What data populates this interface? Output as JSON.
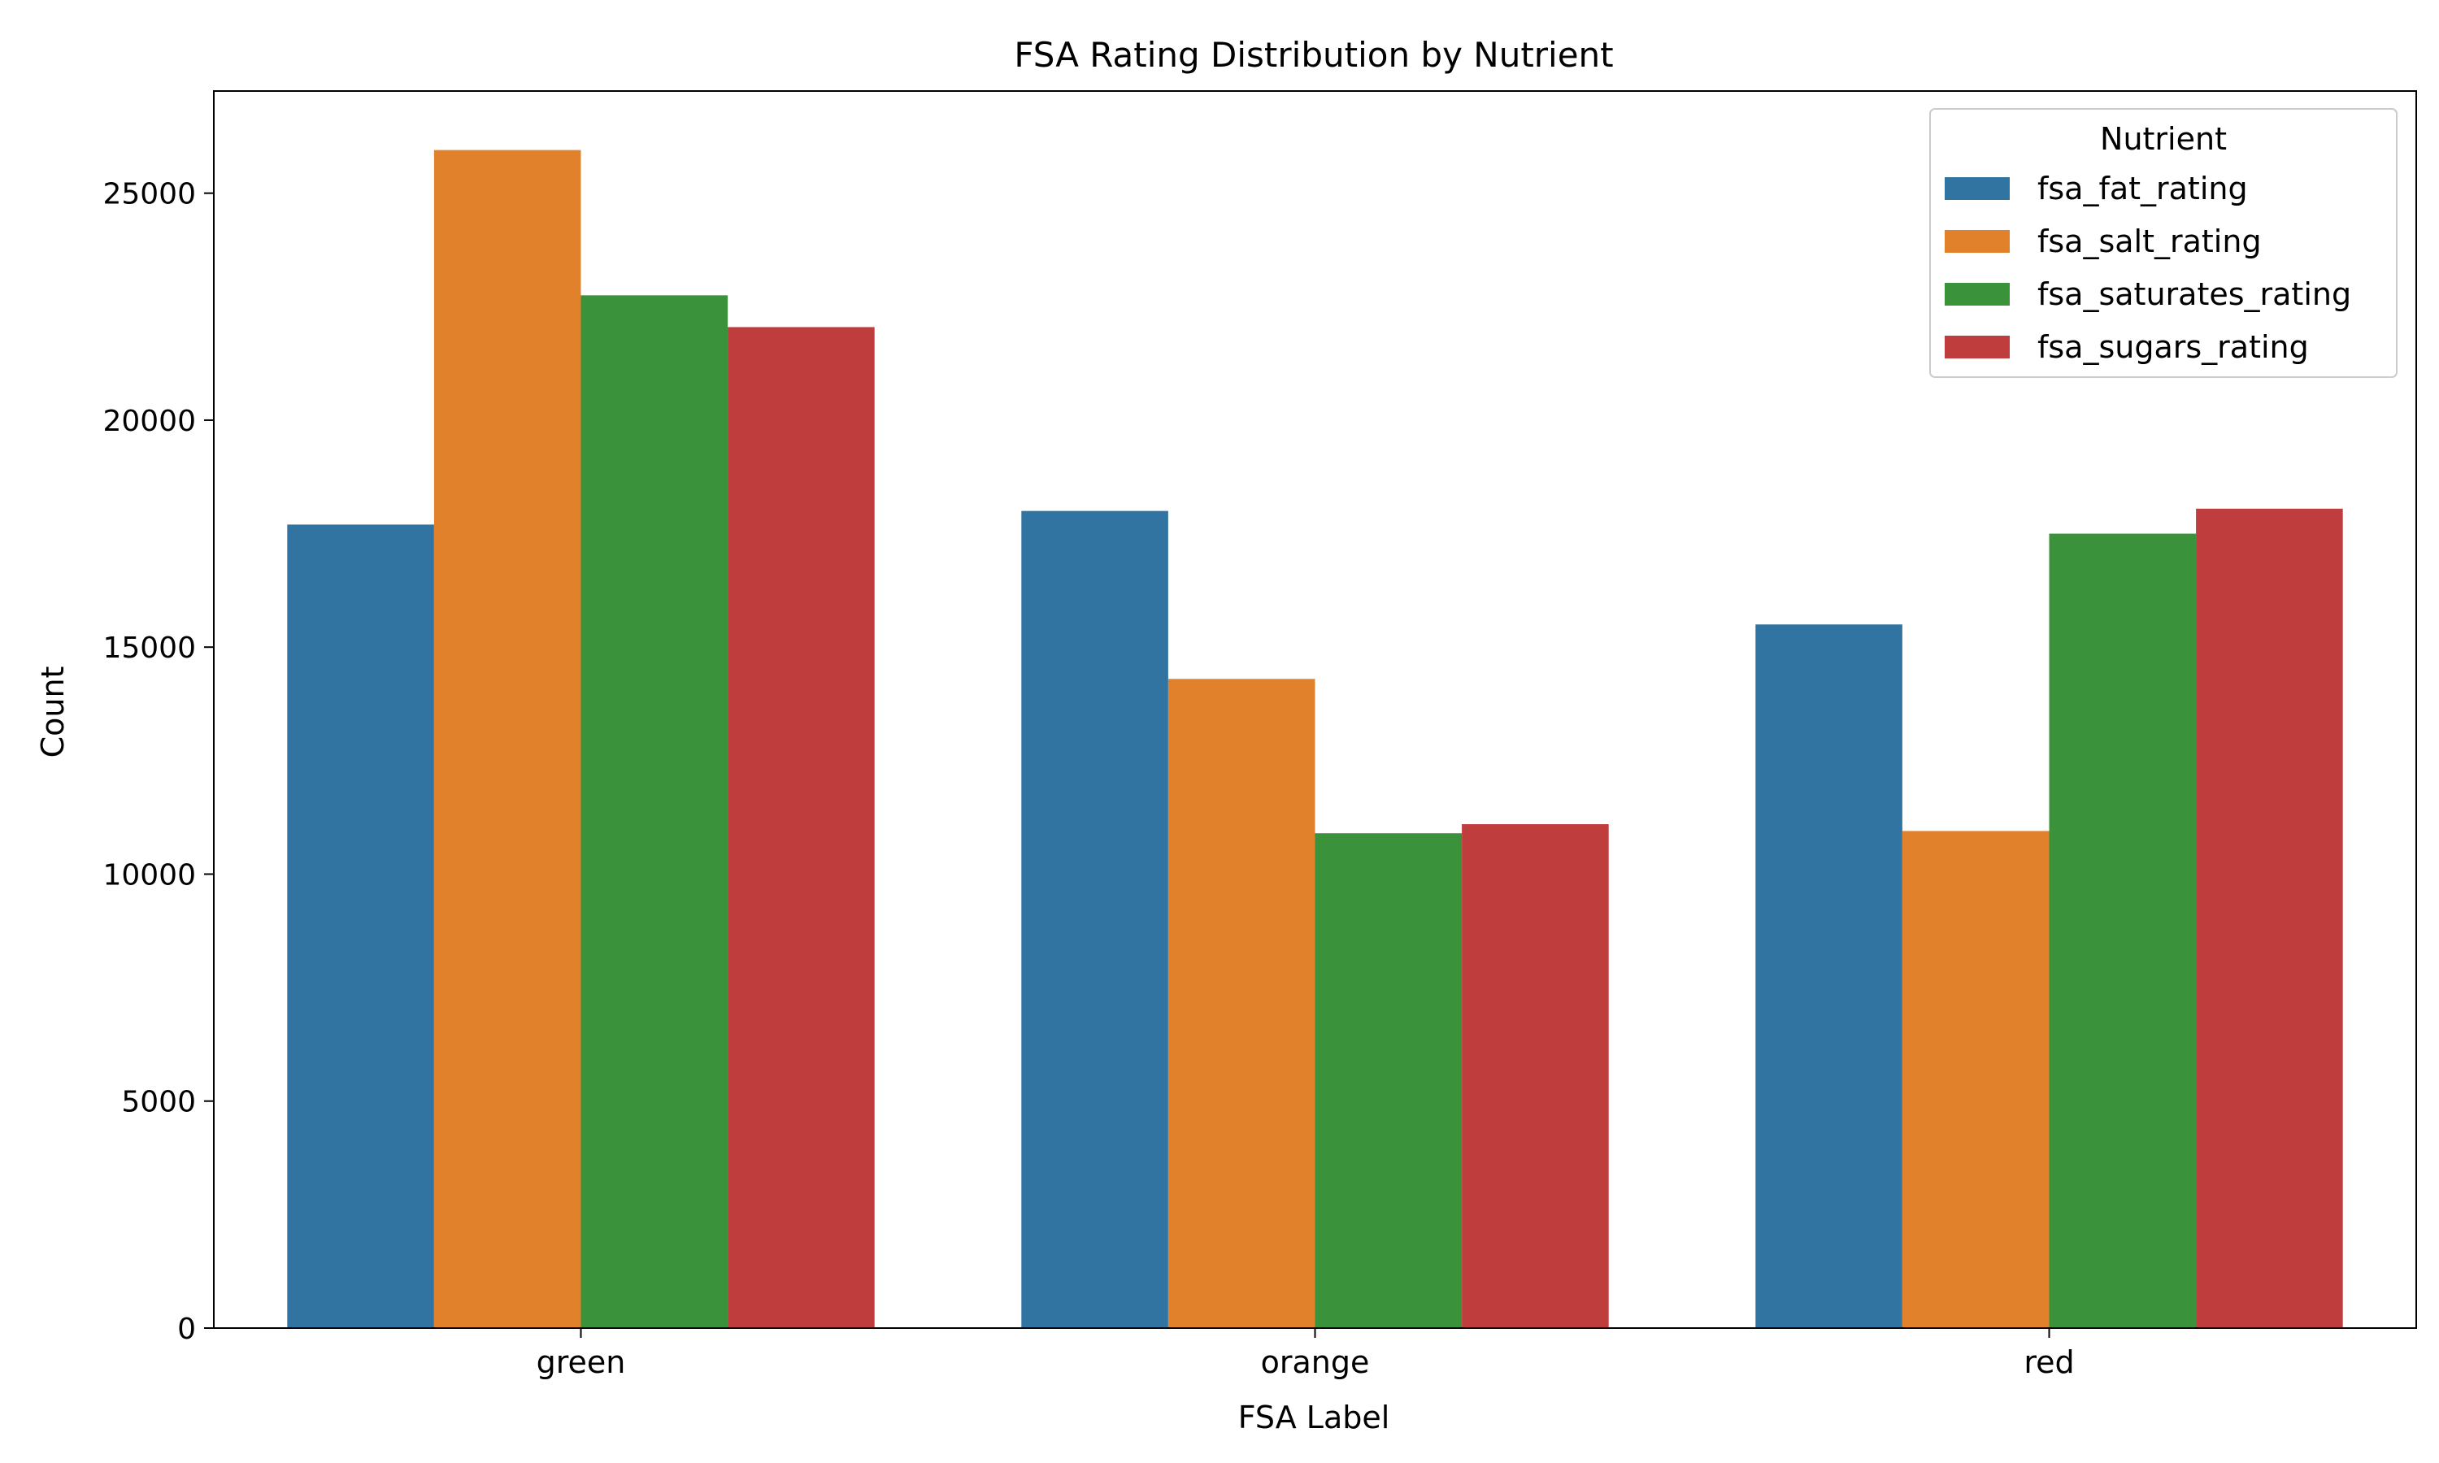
{
  "chart_data": {
    "type": "bar",
    "title": "FSA Rating Distribution by Nutrient",
    "xlabel": "FSA Label",
    "ylabel": "Count",
    "categories": [
      "green",
      "orange",
      "red"
    ],
    "ylim": [
      0,
      27250
    ],
    "yticks": [
      0,
      5000,
      10000,
      15000,
      20000,
      25000
    ],
    "grid": false,
    "legend": {
      "title": "Nutrient",
      "placement": "top-right"
    },
    "series": [
      {
        "name": "fsa_fat_rating",
        "color": "#3274a1",
        "values": [
          17700,
          18000,
          15500
        ]
      },
      {
        "name": "fsa_salt_rating",
        "color": "#e1812c",
        "values": [
          25950,
          14300,
          10950
        ]
      },
      {
        "name": "fsa_saturates_rating",
        "color": "#3a923a",
        "values": [
          22750,
          10900,
          17500
        ]
      },
      {
        "name": "fsa_sugars_rating",
        "color": "#c03d3e",
        "values": [
          22050,
          11100,
          18050
        ]
      }
    ]
  }
}
